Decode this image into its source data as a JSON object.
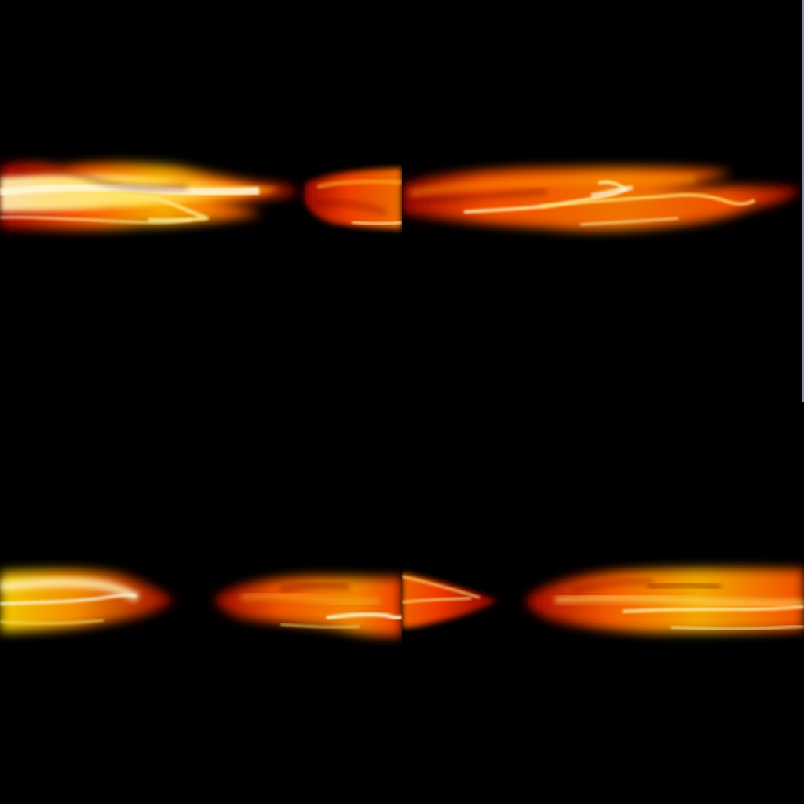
{
  "palette": {
    "background": "#000000",
    "deep_red": "#7a0000",
    "red": "#c81400",
    "orange": "#ff6a00",
    "yellow": "#ffd200",
    "white_hot": "#fff6c8",
    "edge_blue": "#cfd7ff"
  },
  "tiles": [
    {
      "label": "",
      "position": "top-left"
    },
    {
      "label": "",
      "position": "top-right"
    },
    {
      "label": "",
      "position": "bottom-left"
    },
    {
      "label": "",
      "position": "bottom-right"
    }
  ]
}
